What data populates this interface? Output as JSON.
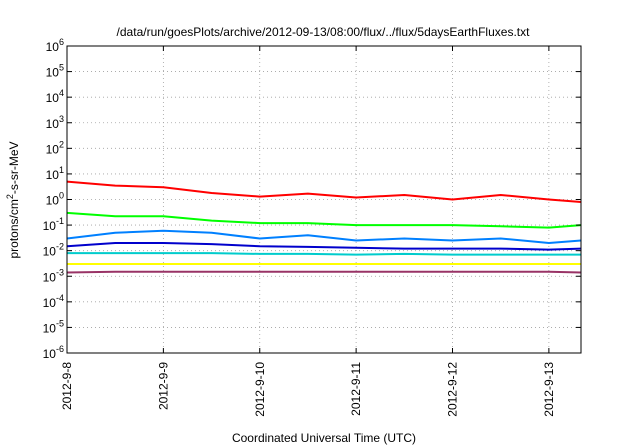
{
  "chart_data": {
    "type": "line",
    "title": "/data/run/goesPlots/archive/2012-09-13/08:00/flux/../flux/5daysEarthFluxes.txt",
    "xlabel": "Coordinated Universal Time (UTC)",
    "ylabel": {
      "prefix": "protons/cm",
      "sup": "2",
      "suffix": "-s-sr-MeV"
    },
    "yscale": "log",
    "ylim": [
      1e-06,
      1000000.0
    ],
    "y_ticks": [
      {
        "mantissa": "10",
        "exp": "-6",
        "value": 1e-06
      },
      {
        "mantissa": "10",
        "exp": "-5",
        "value": 1e-05
      },
      {
        "mantissa": "10",
        "exp": "-4",
        "value": 0.0001
      },
      {
        "mantissa": "10",
        "exp": "-3",
        "value": 0.001
      },
      {
        "mantissa": "10",
        "exp": "-2",
        "value": 0.01
      },
      {
        "mantissa": "10",
        "exp": "-1",
        "value": 0.1
      },
      {
        "mantissa": "10",
        "exp": "0",
        "value": 1
      },
      {
        "mantissa": "10",
        "exp": "1",
        "value": 10
      },
      {
        "mantissa": "10",
        "exp": "2",
        "value": 100
      },
      {
        "mantissa": "10",
        "exp": "3",
        "value": 1000
      },
      {
        "mantissa": "10",
        "exp": "4",
        "value": 10000
      },
      {
        "mantissa": "10",
        "exp": "5",
        "value": 100000
      },
      {
        "mantissa": "10",
        "exp": "6",
        "value": 1000000
      }
    ],
    "xlim": [
      "2012-09-08T00:00",
      "2012-09-13T08:00"
    ],
    "x_ticks": [
      "2012-9-8",
      "2012-9-9",
      "2012-9-10",
      "2012-9-11",
      "2012-9-12",
      "2012-9-13"
    ],
    "grid": true,
    "legend": "none",
    "series": [
      {
        "color": "#ff0000",
        "x": [
          "2012-09-08T00:00",
          "2012-09-08T12:00",
          "2012-09-09T00:00",
          "2012-09-09T12:00",
          "2012-09-10T00:00",
          "2012-09-10T12:00",
          "2012-09-11T00:00",
          "2012-09-11T12:00",
          "2012-09-12T00:00",
          "2012-09-12T12:00",
          "2012-09-13T00:00",
          "2012-09-13T08:00"
        ],
        "y": [
          5,
          3.5,
          3,
          1.8,
          1.3,
          1.7,
          1.2,
          1.5,
          1,
          1.5,
          1,
          0.8
        ]
      },
      {
        "color": "#00ff00",
        "x": [
          "2012-09-08T00:00",
          "2012-09-08T12:00",
          "2012-09-09T00:00",
          "2012-09-09T12:00",
          "2012-09-10T00:00",
          "2012-09-10T12:00",
          "2012-09-11T00:00",
          "2012-09-11T12:00",
          "2012-09-12T00:00",
          "2012-09-12T12:00",
          "2012-09-13T00:00",
          "2012-09-13T08:00"
        ],
        "y": [
          0.3,
          0.22,
          0.22,
          0.15,
          0.12,
          0.12,
          0.1,
          0.1,
          0.1,
          0.09,
          0.08,
          0.1
        ]
      },
      {
        "color": "#0080ff",
        "x": [
          "2012-09-08T00:00",
          "2012-09-08T12:00",
          "2012-09-09T00:00",
          "2012-09-09T12:00",
          "2012-09-10T00:00",
          "2012-09-10T12:00",
          "2012-09-11T00:00",
          "2012-09-11T12:00",
          "2012-09-12T00:00",
          "2012-09-12T12:00",
          "2012-09-13T00:00",
          "2012-09-13T08:00"
        ],
        "y": [
          0.03,
          0.05,
          0.06,
          0.05,
          0.03,
          0.04,
          0.025,
          0.03,
          0.025,
          0.03,
          0.02,
          0.025
        ]
      },
      {
        "color": "#0000cc",
        "x": [
          "2012-09-08T00:00",
          "2012-09-08T12:00",
          "2012-09-09T00:00",
          "2012-09-09T12:00",
          "2012-09-10T00:00",
          "2012-09-10T12:00",
          "2012-09-11T00:00",
          "2012-09-11T12:00",
          "2012-09-12T00:00",
          "2012-09-12T12:00",
          "2012-09-13T00:00",
          "2012-09-13T08:00"
        ],
        "y": [
          0.015,
          0.02,
          0.02,
          0.018,
          0.015,
          0.014,
          0.013,
          0.012,
          0.012,
          0.012,
          0.011,
          0.012
        ]
      },
      {
        "color": "#00cccc",
        "x": [
          "2012-09-08T00:00",
          "2012-09-08T12:00",
          "2012-09-09T00:00",
          "2012-09-09T12:00",
          "2012-09-10T00:00",
          "2012-09-10T12:00",
          "2012-09-11T00:00",
          "2012-09-11T12:00",
          "2012-09-12T00:00",
          "2012-09-12T12:00",
          "2012-09-13T00:00",
          "2012-09-13T08:00"
        ],
        "y": [
          0.008,
          0.008,
          0.008,
          0.008,
          0.0075,
          0.0075,
          0.007,
          0.0075,
          0.007,
          0.007,
          0.007,
          0.007
        ]
      },
      {
        "color": "#ffff00",
        "x": [
          "2012-09-08T00:00",
          "2012-09-08T12:00",
          "2012-09-09T00:00",
          "2012-09-09T12:00",
          "2012-09-10T00:00",
          "2012-09-10T12:00",
          "2012-09-11T00:00",
          "2012-09-11T12:00",
          "2012-09-12T00:00",
          "2012-09-12T12:00",
          "2012-09-13T00:00",
          "2012-09-13T08:00"
        ],
        "y": [
          0.003,
          0.003,
          0.003,
          0.003,
          0.003,
          0.003,
          0.003,
          0.003,
          0.003,
          0.003,
          0.003,
          0.003
        ]
      },
      {
        "color": "#993366",
        "x": [
          "2012-09-08T00:00",
          "2012-09-08T12:00",
          "2012-09-09T00:00",
          "2012-09-09T12:00",
          "2012-09-10T00:00",
          "2012-09-10T12:00",
          "2012-09-11T00:00",
          "2012-09-11T12:00",
          "2012-09-12T00:00",
          "2012-09-12T12:00",
          "2012-09-13T00:00",
          "2012-09-13T08:00"
        ],
        "y": [
          0.0014,
          0.0015,
          0.0015,
          0.0015,
          0.0015,
          0.0015,
          0.0015,
          0.0015,
          0.0015,
          0.0015,
          0.0015,
          0.0014
        ]
      }
    ]
  }
}
